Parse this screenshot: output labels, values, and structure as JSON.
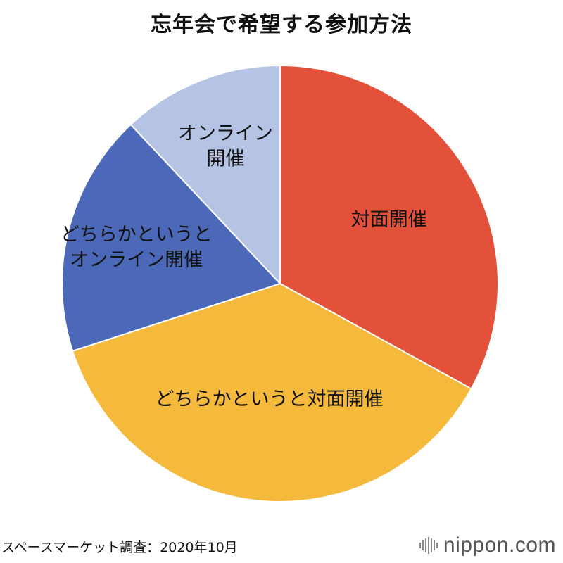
{
  "title": "忘年会で希望する参加方法",
  "chart_data": {
    "type": "pie",
    "title": "忘年会で希望する参加方法",
    "slices": [
      {
        "label": "対面開催",
        "lines": [
          "対面開催"
        ],
        "value": 33,
        "color": "#e4513a",
        "text_color": "#ffffff"
      },
      {
        "label": "どちらかというと対面開催",
        "lines": [
          "どちらかというと対面開催"
        ],
        "value": 37,
        "color": "#f5b93b",
        "text_color": "#111111"
      },
      {
        "label": "どちらかというとオンライン開催",
        "lines": [
          "どちらかというと",
          "オンライン開催"
        ],
        "value": 18,
        "color": "#4b69b8",
        "text_color": "#ffffff"
      },
      {
        "label": "オンライン開催",
        "lines": [
          "オンライン",
          "開催"
        ],
        "value": 12,
        "color": "#b5c3e4",
        "text_color": "#111111"
      }
    ],
    "start_angle": "12 o'clock",
    "direction": "clockwise",
    "legend": "none"
  },
  "source": "スペースマーケット調査：2020年10月",
  "logo": {
    "text": "nippon.com"
  }
}
